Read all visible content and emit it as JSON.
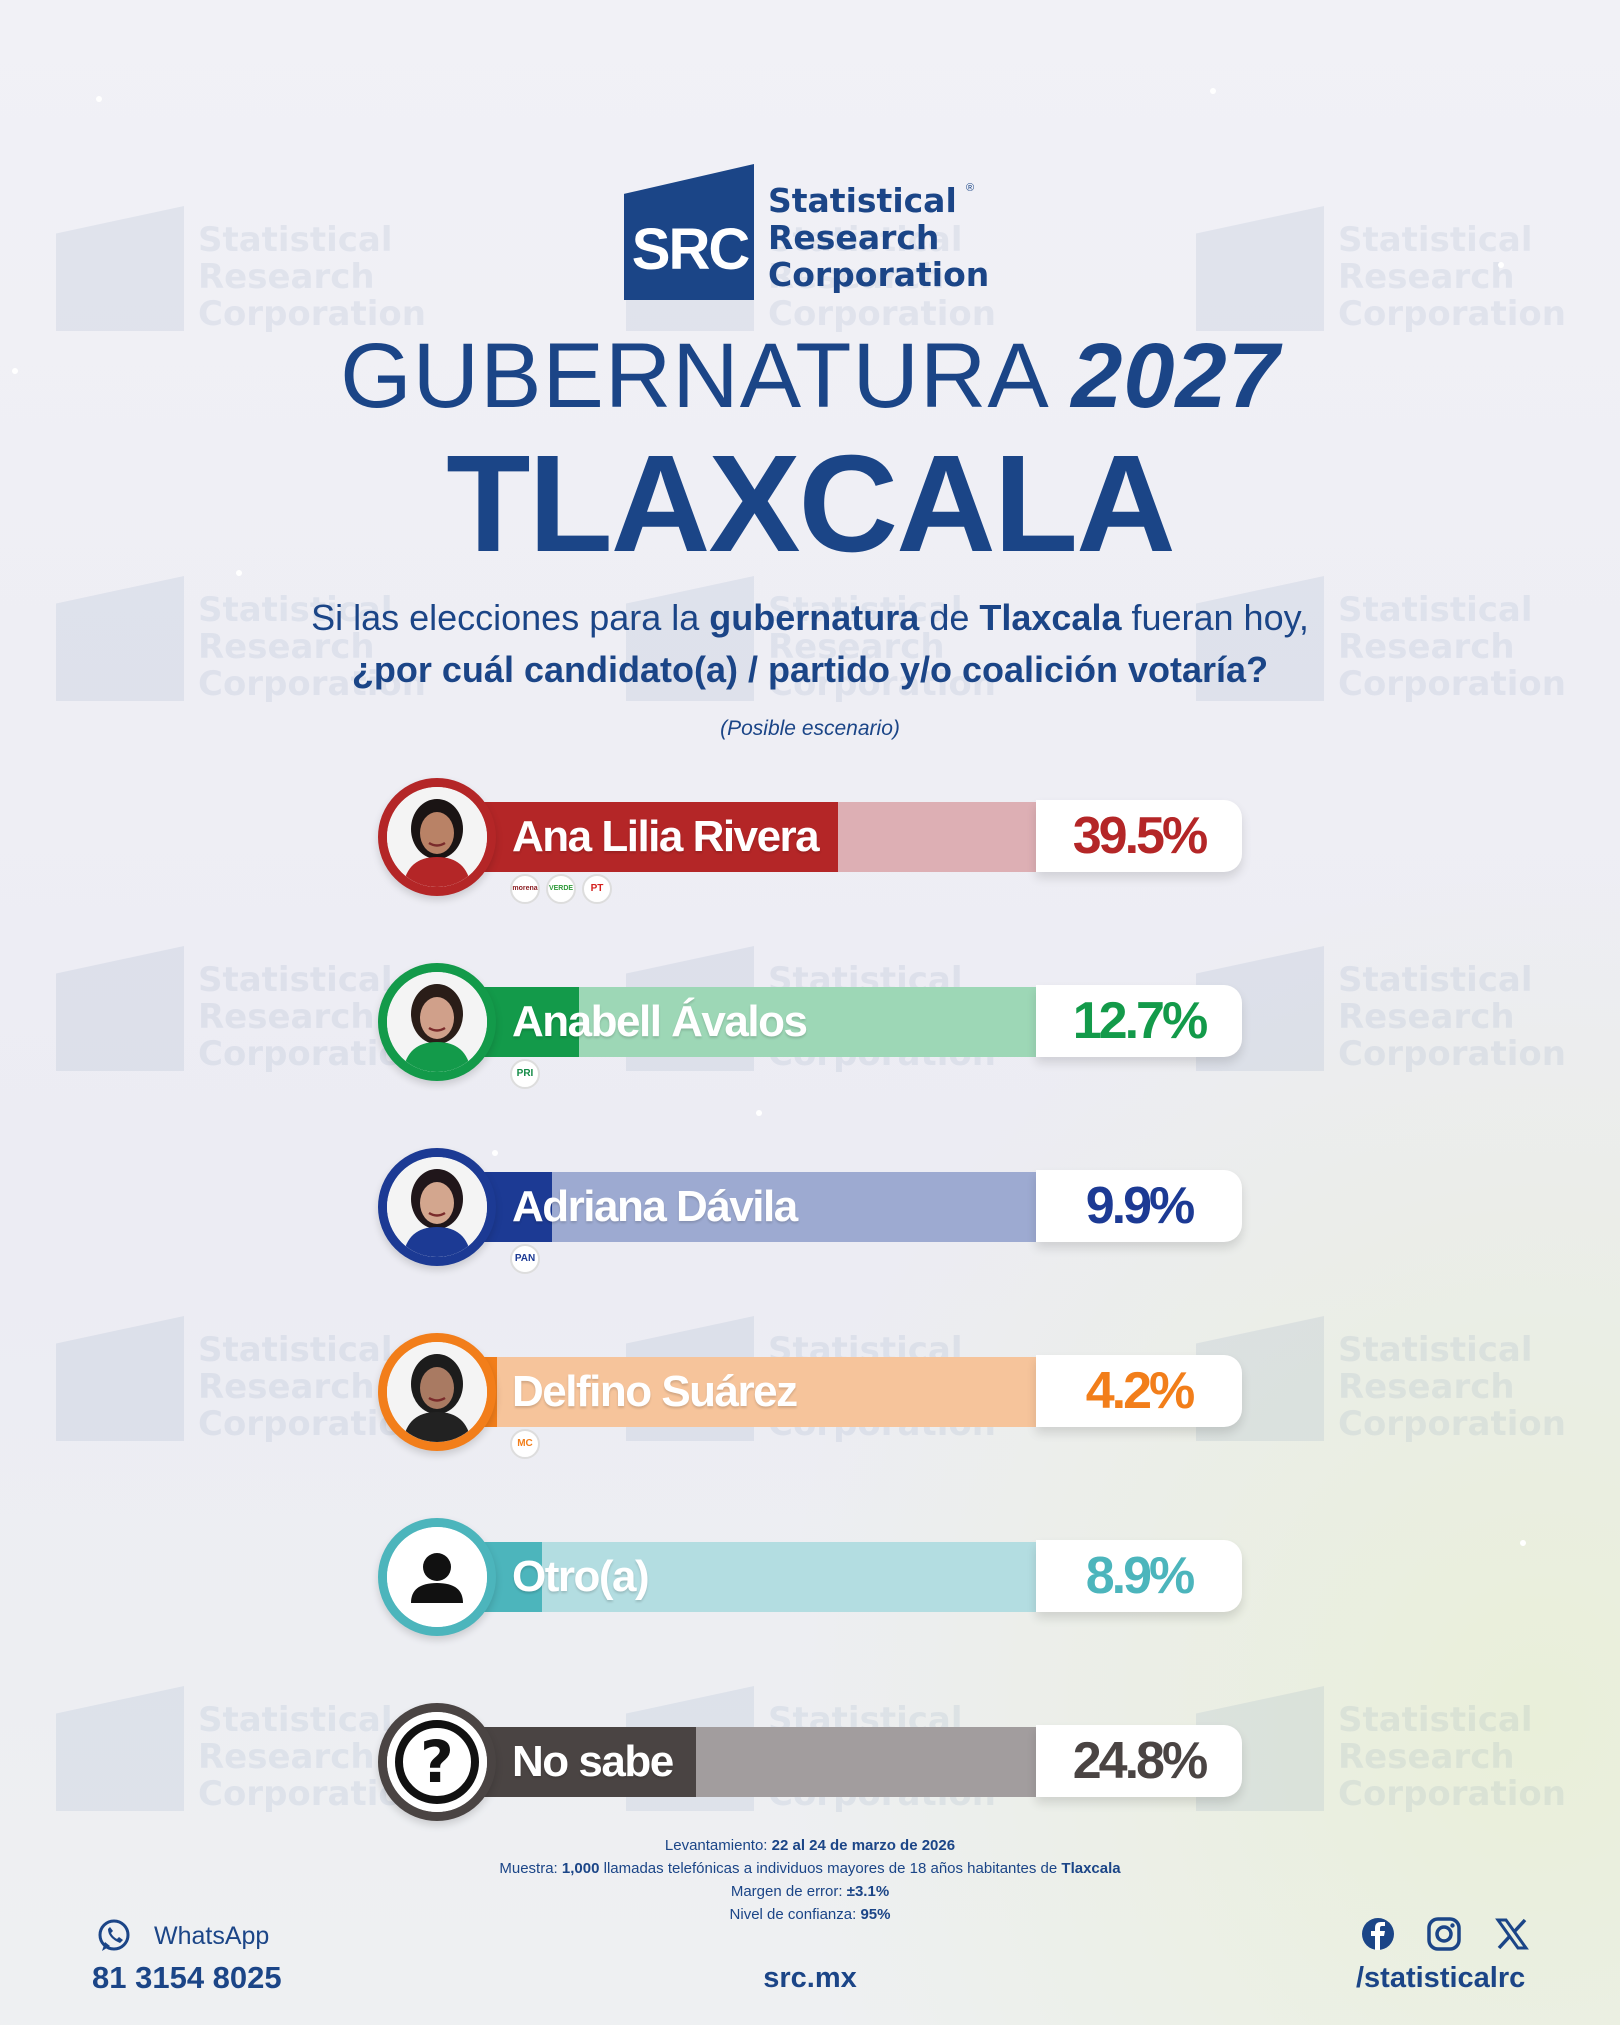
{
  "brand": {
    "logo_mark": "SRC",
    "name_lines": [
      "Statistical",
      "Research",
      "Corporation"
    ],
    "registered": "®",
    "color": "#1b4587"
  },
  "header": {
    "title_prefix": "GUBERNATURA",
    "title_year": "2027",
    "state": "TLAXCALA"
  },
  "question": {
    "line1_a": "Si las elecciones para la ",
    "line1_b": "gubernatura",
    "line1_c": " de ",
    "line1_d": "Tlaxcala",
    "line1_e": " fueran hoy,",
    "line2": "¿por cuál candidato(a) / partido y/o coalición votaría?",
    "scenario": "(Posible escenario)"
  },
  "chart_data": {
    "type": "bar",
    "orientation": "horizontal",
    "categories": [
      "Ana Lilia Rivera",
      "Anabell Ávalos",
      "Adriana Dávila",
      "Delfino Suárez",
      "Otro(a)",
      "No sabe"
    ],
    "values": [
      39.5,
      12.7,
      9.9,
      4.2,
      8.9,
      24.8
    ],
    "labels": [
      "39.5%",
      "12.7%",
      "9.9%",
      "4.2%",
      "8.9%",
      "24.8%"
    ],
    "xlim": [
      0,
      60
    ],
    "colors": [
      "#b42627",
      "#139a4a",
      "#1c3a94",
      "#f27e1a",
      "#4cb5bc",
      "#4a4443"
    ],
    "light_colors": [
      "#ddafb4",
      "#9dd7b6",
      "#9daad1",
      "#f6c49b",
      "#b3dde1",
      "#a29d9e"
    ],
    "parties": [
      [
        "morena",
        "VERDE",
        "PT"
      ],
      [
        "PRI"
      ],
      [
        "PAN"
      ],
      [
        "MC"
      ],
      [],
      []
    ]
  },
  "footer": {
    "fieldwork_label": "Levantamiento: ",
    "fieldwork_value": "22 al 24 de marzo de 2026",
    "sample_label": "Muestra: ",
    "sample_value": "1,000",
    "sample_text": " llamadas telefónicas a individuos mayores de 18 años habitantes de ",
    "sample_place": "Tlaxcala",
    "margin_label": "Margen de error: ",
    "margin_value": "±3.1%",
    "confidence_label": "Nivel de confianza: ",
    "confidence_value": "95%",
    "whatsapp_label": "WhatsApp",
    "whatsapp_number": "81 3154 8025",
    "website": "src.mx",
    "social_handle": "/statisticalrc",
    "social_icons": [
      "facebook-icon",
      "instagram-icon",
      "x-icon"
    ]
  }
}
